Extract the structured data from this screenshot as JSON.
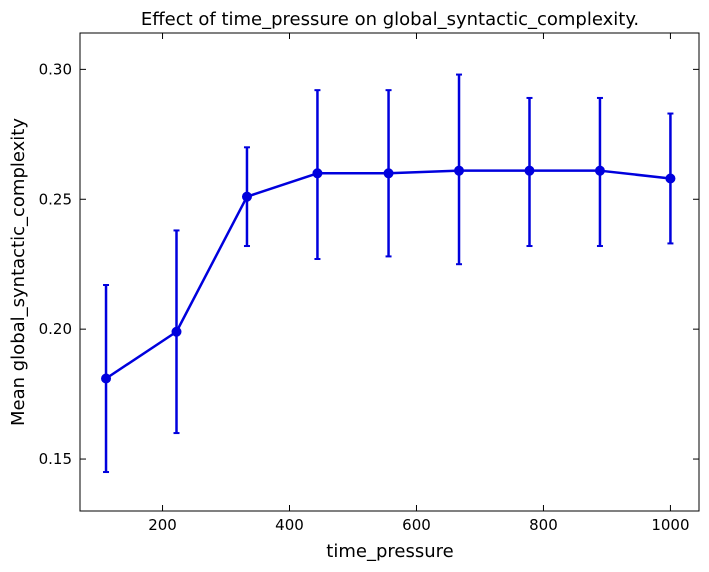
{
  "chart_data": {
    "type": "line",
    "title": "Effect of time_pressure on global_syntactic_complexity.",
    "xlabel": "time_pressure",
    "ylabel": "Mean global_syntactic_complexity",
    "xlim": [
      70,
      1045
    ],
    "ylim": [
      0.13,
      0.314
    ],
    "xticks": [
      200,
      400,
      600,
      800,
      1000
    ],
    "yticks": [
      0.15,
      0.2,
      0.25,
      0.3
    ],
    "ytick_labels": [
      "0.15",
      "0.20",
      "0.25",
      "0.30"
    ],
    "grid": false,
    "legend": "none",
    "color": "#0000dd",
    "series": [
      {
        "x": [
          111,
          222,
          333,
          444,
          556,
          667,
          778,
          889,
          1000
        ],
        "y": [
          0.181,
          0.199,
          0.251,
          0.26,
          0.26,
          0.261,
          0.261,
          0.261,
          0.258
        ],
        "err_low": [
          0.145,
          0.16,
          0.232,
          0.227,
          0.228,
          0.225,
          0.232,
          0.232,
          0.233
        ],
        "err_high": [
          0.217,
          0.238,
          0.27,
          0.292,
          0.292,
          0.298,
          0.289,
          0.289,
          0.283
        ]
      }
    ]
  }
}
